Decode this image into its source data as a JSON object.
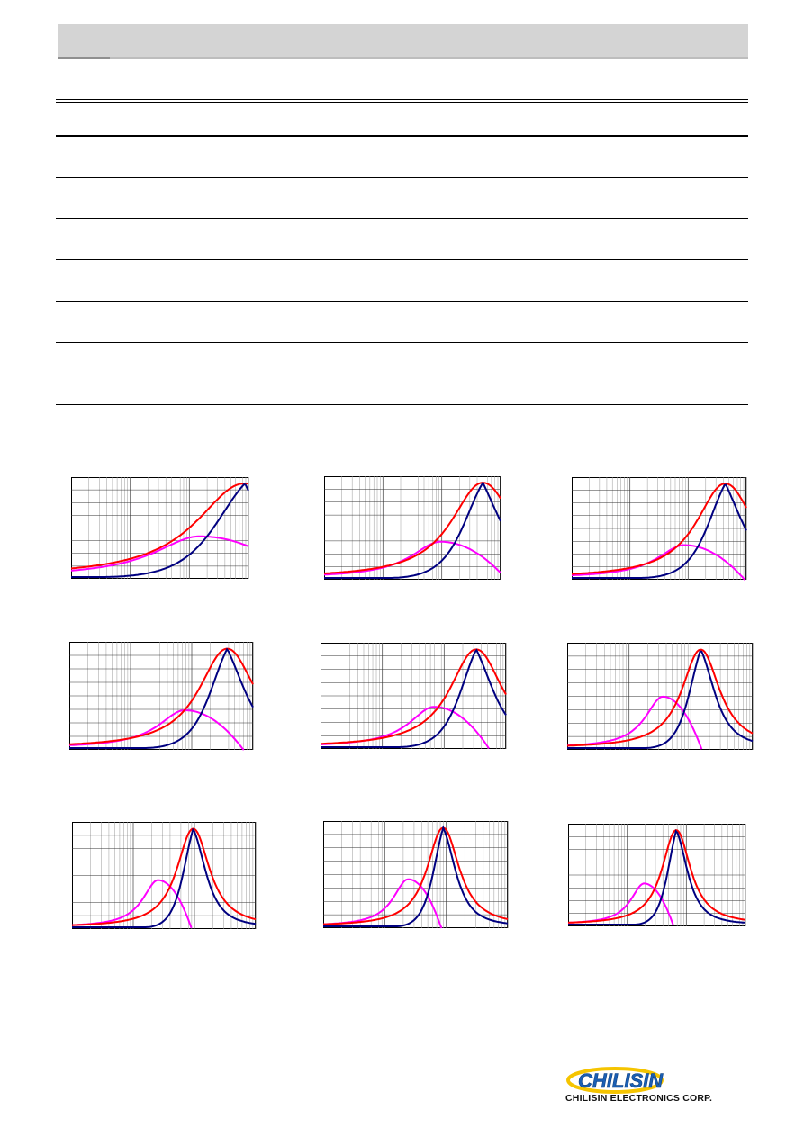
{
  "header": {
    "bar_color": "#d4d4d4"
  },
  "colors": {
    "z": "#ff0000",
    "x": "#000080",
    "r": "#ff00ff",
    "logo_blue": "#1a5fb4",
    "logo_yellow": "#f5c400"
  },
  "chart_data": [
    {
      "type": "line",
      "name_hint": "impedance",
      "x_scale": "log",
      "y_peak_pos": 0.98,
      "r_peak": 0.4
    },
    {
      "type": "line",
      "name_hint": "impedance",
      "x_scale": "log",
      "y_peak_pos": 0.9,
      "r_peak": 0.35
    },
    {
      "type": "line",
      "name_hint": "impedance",
      "x_scale": "log",
      "y_peak_pos": 0.88,
      "r_peak": 0.32
    },
    {
      "type": "line",
      "name_hint": "impedance",
      "x_scale": "log",
      "y_peak_pos": 0.86,
      "r_peak": 0.35
    },
    {
      "type": "line",
      "name_hint": "impedance",
      "x_scale": "log",
      "y_peak_pos": 0.84,
      "r_peak": 0.38
    },
    {
      "type": "line",
      "name_hint": "impedance",
      "x_scale": "log",
      "y_peak_pos": 0.72,
      "r_peak": 0.48
    },
    {
      "type": "line",
      "name_hint": "impedance",
      "x_scale": "log",
      "y_peak_pos": 0.66,
      "r_peak": 0.44
    },
    {
      "type": "line",
      "name_hint": "impedance",
      "x_scale": "log",
      "y_peak_pos": 0.65,
      "r_peak": 0.44
    },
    {
      "type": "line",
      "name_hint": "impedance",
      "x_scale": "log",
      "y_peak_pos": 0.61,
      "r_peak": 0.4
    }
  ],
  "logo": {
    "brand": "CHILISIN",
    "company": "CHILISIN ELECTRONICS CORP."
  }
}
